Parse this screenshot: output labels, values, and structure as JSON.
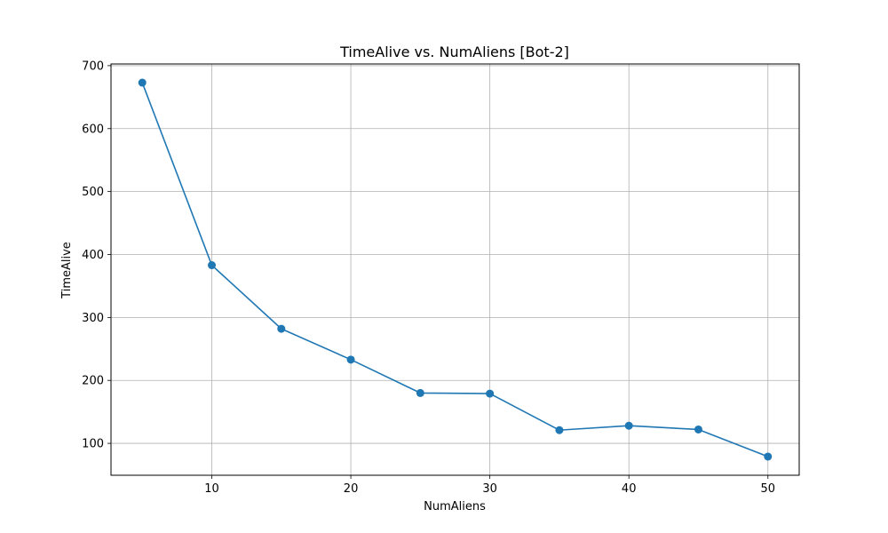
{
  "chart_data": {
    "type": "line",
    "title": "TimeAlive vs. NumAliens [Bot-2]",
    "xlabel": "NumAliens",
    "ylabel": "TimeAlive",
    "x": [
      5,
      10,
      15,
      20,
      25,
      30,
      35,
      40,
      45,
      50
    ],
    "series": [
      {
        "values": [
          673,
          383,
          282,
          233,
          180,
          179,
          121,
          128,
          122,
          79
        ],
        "color": "#1f77b4",
        "marker": "circle"
      }
    ],
    "xlim": [
      2.75,
      52.25
    ],
    "ylim": [
      49.3,
      702.7
    ],
    "xticks": [
      10,
      20,
      30,
      40,
      50
    ],
    "yticks": [
      100,
      200,
      300,
      400,
      500,
      600,
      700
    ],
    "grid": true
  }
}
